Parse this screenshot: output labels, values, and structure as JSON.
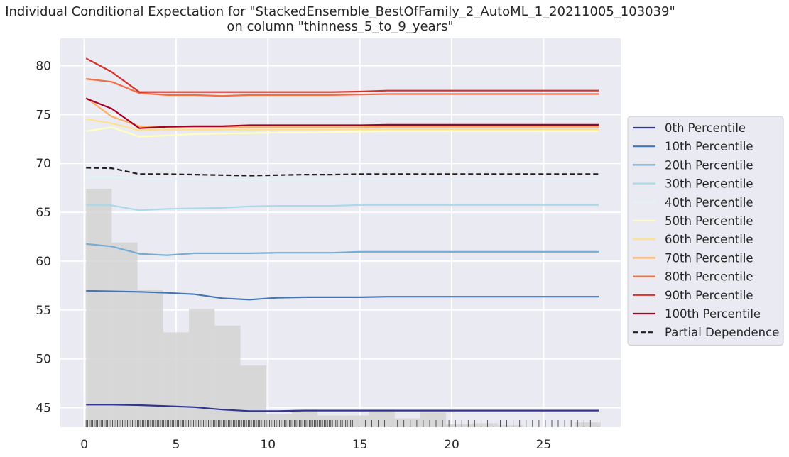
{
  "chart_data": {
    "type": "line",
    "title_line1": "Individual Conditional Expectation for \"StackedEnsemble_BestOfFamily_2_AutoML_1_20211005_103039\"",
    "title_line2": "on column \"thinness_5_to_9_years\"",
    "xlabel": "",
    "ylabel": "",
    "xlim": [
      -1.3,
      29.2
    ],
    "ylim": [
      43.0,
      82.8
    ],
    "x_ticks": [
      0,
      5,
      10,
      15,
      20,
      25
    ],
    "y_ticks": [
      45,
      50,
      55,
      60,
      65,
      70,
      75,
      80
    ],
    "grid": true,
    "legend_position": "right",
    "x": [
      0.1,
      1.5,
      3.0,
      4.5,
      6.0,
      7.5,
      9.0,
      10.5,
      12.0,
      13.5,
      15.0,
      16.5,
      18.0,
      19.5,
      21.0,
      22.5,
      24.0,
      25.5,
      27.0,
      28.0
    ],
    "series": [
      {
        "name": "0th Percentile",
        "color": "#313695",
        "style": "solid",
        "values": [
          45.3,
          45.3,
          45.25,
          45.15,
          45.05,
          44.8,
          44.65,
          44.65,
          44.7,
          44.7,
          44.7,
          44.7,
          44.7,
          44.7,
          44.7,
          44.7,
          44.7,
          44.7,
          44.7,
          44.7
        ]
      },
      {
        "name": "10th Percentile",
        "color": "#4575b4",
        "style": "solid",
        "values": [
          56.95,
          56.9,
          56.85,
          56.75,
          56.6,
          56.2,
          56.05,
          56.25,
          56.3,
          56.3,
          56.3,
          56.35,
          56.35,
          56.35,
          56.35,
          56.35,
          56.35,
          56.35,
          56.35,
          56.35
        ]
      },
      {
        "name": "20th Percentile",
        "color": "#74add1",
        "style": "solid",
        "values": [
          61.75,
          61.5,
          60.75,
          60.6,
          60.8,
          60.8,
          60.8,
          60.85,
          60.85,
          60.85,
          60.95,
          60.95,
          60.95,
          60.95,
          60.95,
          60.95,
          60.95,
          60.95,
          60.95,
          60.95
        ]
      },
      {
        "name": "30th Percentile",
        "color": "#abd9e9",
        "style": "solid",
        "values": [
          65.75,
          65.7,
          65.2,
          65.35,
          65.4,
          65.45,
          65.6,
          65.65,
          65.65,
          65.65,
          65.75,
          65.75,
          65.75,
          65.75,
          65.75,
          65.75,
          65.75,
          65.75,
          65.75,
          65.75
        ]
      },
      {
        "name": "40th Percentile",
        "color": "#e0f3f8",
        "style": "solid",
        "values": [
          68.6,
          68.6,
          68.45,
          68.4,
          68.4,
          68.35,
          68.35,
          68.35,
          68.35,
          68.35,
          68.4,
          68.4,
          68.4,
          68.4,
          68.4,
          68.4,
          68.4,
          68.4,
          68.4,
          68.4
        ]
      },
      {
        "name": "50th Percentile",
        "color": "#ffffbf",
        "style": "solid",
        "values": [
          73.3,
          73.7,
          72.75,
          72.85,
          73.0,
          73.05,
          73.1,
          73.15,
          73.15,
          73.2,
          73.25,
          73.3,
          73.3,
          73.3,
          73.3,
          73.3,
          73.3,
          73.3,
          73.3,
          73.3
        ]
      },
      {
        "name": "60th Percentile",
        "color": "#fee090",
        "style": "solid",
        "values": [
          74.55,
          74.1,
          73.4,
          73.45,
          73.45,
          73.45,
          73.45,
          73.45,
          73.45,
          73.45,
          73.5,
          73.5,
          73.5,
          73.5,
          73.5,
          73.5,
          73.5,
          73.5,
          73.5,
          73.5
        ]
      },
      {
        "name": "70th Percentile",
        "color": "#fdae61",
        "style": "solid",
        "values": [
          76.7,
          74.8,
          73.8,
          73.7,
          73.7,
          73.7,
          73.7,
          73.7,
          73.7,
          73.7,
          73.7,
          73.75,
          73.75,
          73.75,
          73.75,
          73.75,
          73.75,
          73.75,
          73.75,
          73.75
        ]
      },
      {
        "name": "80th Percentile",
        "color": "#f46d43",
        "style": "solid",
        "values": [
          78.65,
          78.35,
          77.2,
          77.0,
          77.0,
          76.9,
          77.0,
          77.0,
          77.0,
          77.0,
          77.05,
          77.1,
          77.1,
          77.1,
          77.1,
          77.1,
          77.1,
          77.1,
          77.1,
          77.1
        ]
      },
      {
        "name": "90th Percentile",
        "color": "#d73027",
        "style": "solid",
        "values": [
          80.75,
          79.35,
          77.3,
          77.3,
          77.3,
          77.3,
          77.3,
          77.3,
          77.3,
          77.3,
          77.35,
          77.45,
          77.45,
          77.45,
          77.45,
          77.45,
          77.45,
          77.45,
          77.45,
          77.45
        ]
      },
      {
        "name": "100th Percentile",
        "color": "#a50026",
        "style": "solid",
        "values": [
          76.65,
          75.6,
          73.6,
          73.75,
          73.8,
          73.8,
          73.9,
          73.9,
          73.9,
          73.9,
          73.9,
          73.95,
          73.95,
          73.95,
          73.95,
          73.95,
          73.95,
          73.95,
          73.95,
          73.95
        ]
      },
      {
        "name": "Partial Dependence",
        "color": "#1f1f1f",
        "style": "dashed",
        "values": [
          69.55,
          69.5,
          68.9,
          68.9,
          68.85,
          68.8,
          68.75,
          68.8,
          68.85,
          68.85,
          68.9,
          68.9,
          68.9,
          68.9,
          68.9,
          68.9,
          68.9,
          68.9,
          68.9,
          68.9
        ]
      }
    ],
    "histogram": {
      "color": "#d3d3d3",
      "bins": [
        {
          "x0": 0.1,
          "x1": 1.5,
          "top": 67.4
        },
        {
          "x0": 1.5,
          "x1": 2.9,
          "top": 61.9
        },
        {
          "x0": 2.9,
          "x1": 4.3,
          "top": 57.1
        },
        {
          "x0": 4.3,
          "x1": 5.7,
          "top": 52.7
        },
        {
          "x0": 5.7,
          "x1": 7.1,
          "top": 55.1
        },
        {
          "x0": 7.1,
          "x1": 8.5,
          "top": 53.4
        },
        {
          "x0": 8.5,
          "x1": 9.9,
          "top": 49.3
        },
        {
          "x0": 9.9,
          "x1": 11.3,
          "top": 44.3
        },
        {
          "x0": 11.3,
          "x1": 12.7,
          "top": 44.8
        },
        {
          "x0": 12.7,
          "x1": 14.1,
          "top": 44.2
        },
        {
          "x0": 14.1,
          "x1": 15.5,
          "top": 44.2
        },
        {
          "x0": 15.5,
          "x1": 16.9,
          "top": 44.8
        },
        {
          "x0": 16.9,
          "x1": 18.3,
          "top": 43.9
        },
        {
          "x0": 18.3,
          "x1": 19.7,
          "top": 44.5
        },
        {
          "x0": 19.7,
          "x1": 21.1,
          "top": 43.3
        },
        {
          "x0": 21.1,
          "x1": 22.5,
          "top": 43.4
        },
        {
          "x0": 22.5,
          "x1": 23.9,
          "top": 43.2
        },
        {
          "x0": 23.9,
          "x1": 25.3,
          "top": 43.0
        },
        {
          "x0": 25.3,
          "x1": 26.7,
          "top": 43.0
        },
        {
          "x0": 26.7,
          "x1": 28.1,
          "top": 43.5
        }
      ]
    }
  }
}
